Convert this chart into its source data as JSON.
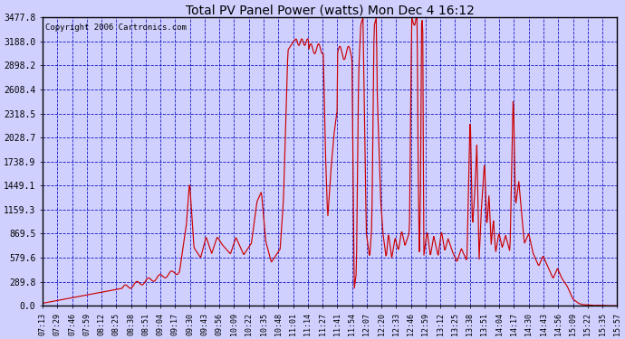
{
  "title": "Total PV Panel Power (watts) Mon Dec 4 16:12",
  "copyright_text": "Copyright 2006 Cartronics.com",
  "background_color": "#d0d0ff",
  "line_color": "#cc0000",
  "grid_color": "#0000bb",
  "yticks": [
    0.0,
    289.8,
    579.6,
    869.5,
    1159.3,
    1449.1,
    1738.9,
    2028.7,
    2318.5,
    2608.4,
    2898.2,
    3188.0,
    3477.8
  ],
  "ymax": 3477.8,
  "ymin": 0.0,
  "x_labels": [
    "07:13",
    "07:29",
    "07:46",
    "07:59",
    "08:12",
    "08:25",
    "08:38",
    "08:51",
    "09:04",
    "09:17",
    "09:30",
    "09:43",
    "09:56",
    "10:09",
    "10:22",
    "10:35",
    "10:48",
    "11:01",
    "11:14",
    "11:27",
    "11:41",
    "11:54",
    "12:07",
    "12:20",
    "12:33",
    "12:46",
    "12:59",
    "13:12",
    "13:25",
    "13:38",
    "13:51",
    "14:04",
    "14:17",
    "14:30",
    "14:43",
    "14:56",
    "15:09",
    "15:22",
    "15:35",
    "15:57"
  ]
}
